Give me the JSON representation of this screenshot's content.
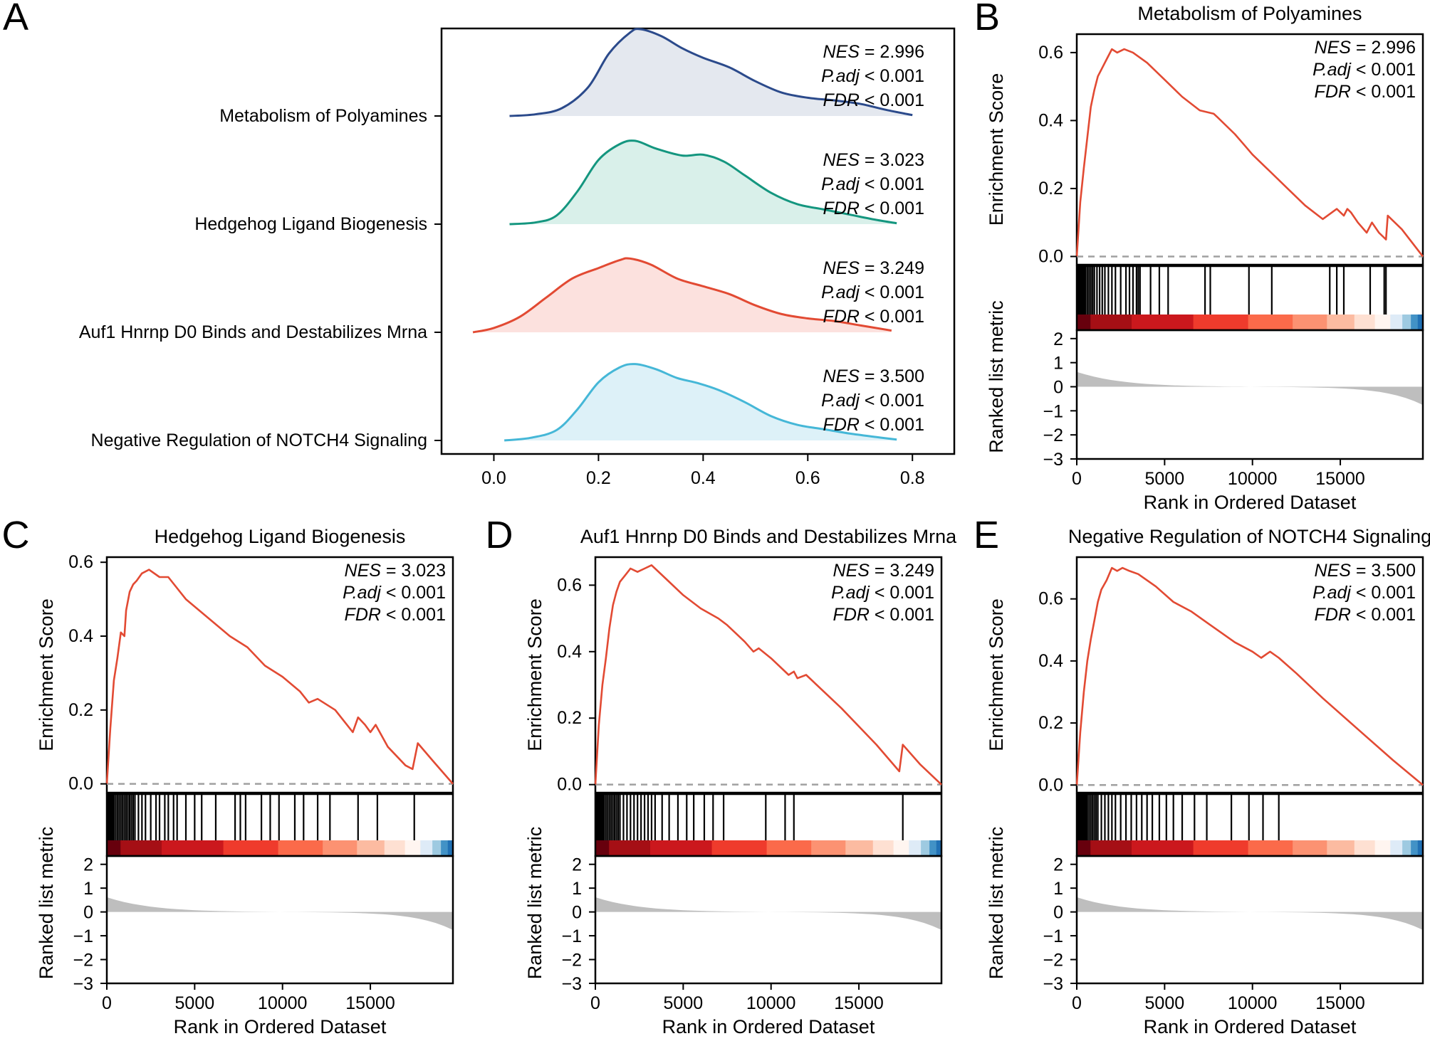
{
  "figure": {
    "panel_letters": [
      "A",
      "B",
      "C",
      "D",
      "E"
    ],
    "colors": {
      "curve": "#E24A33",
      "dash": "#A0A0A0",
      "hit": "#000000",
      "metric_fill": "#BEBEBE",
      "ridge_lines": [
        "#2B4A8B",
        "#14967F",
        "#E24A33",
        "#45B7D7"
      ],
      "ridge_fills": [
        "#E4E8EF",
        "#D9F0EA",
        "#FCE1DE",
        "#DDF1F8"
      ],
      "heat_scale": [
        "#67000D",
        "#A50F15",
        "#CB181D",
        "#EF3B2C",
        "#FB6A4A",
        "#FC9272",
        "#FCBBA1",
        "#FEE0D2",
        "#FFF5F0",
        "#DEEBF7",
        "#9ECAE1",
        "#4292C6",
        "#2171B5"
      ]
    }
  },
  "chart_data": [
    {
      "panel": "A",
      "type": "ridgeline",
      "x_ticks": [
        "0.0",
        "0.2",
        "0.4",
        "0.6",
        "0.8"
      ],
      "xlim": [
        -0.1,
        0.88
      ],
      "rows": [
        {
          "label": "Metabolism of Polyamines",
          "nes_label": "NES",
          "nes_value": "= 2.996",
          "padj_label": "P.adj",
          "padj_value": "< 0.001",
          "fdr_label": "FDR",
          "fdr_value": "< 0.001",
          "density": [
            [
              0.03,
              0.0
            ],
            [
              0.08,
              0.02
            ],
            [
              0.13,
              0.09
            ],
            [
              0.18,
              0.33
            ],
            [
              0.22,
              0.72
            ],
            [
              0.26,
              0.96
            ],
            [
              0.28,
              1.0
            ],
            [
              0.32,
              0.92
            ],
            [
              0.36,
              0.78
            ],
            [
              0.4,
              0.67
            ],
            [
              0.45,
              0.56
            ],
            [
              0.5,
              0.4
            ],
            [
              0.55,
              0.27
            ],
            [
              0.6,
              0.21
            ],
            [
              0.65,
              0.18
            ],
            [
              0.7,
              0.14
            ],
            [
              0.75,
              0.07
            ],
            [
              0.8,
              0.01
            ]
          ]
        },
        {
          "label": "Hedgehog Ligand Biogenesis",
          "nes_label": "NES",
          "nes_value": "= 3.023",
          "padj_label": "P.adj",
          "padj_value": "< 0.001",
          "fdr_label": "FDR",
          "fdr_value": "< 0.001",
          "density": [
            [
              0.03,
              0.0
            ],
            [
              0.08,
              0.02
            ],
            [
              0.12,
              0.1
            ],
            [
              0.16,
              0.38
            ],
            [
              0.2,
              0.74
            ],
            [
              0.24,
              0.92
            ],
            [
              0.27,
              0.96
            ],
            [
              0.31,
              0.87
            ],
            [
              0.36,
              0.79
            ],
            [
              0.4,
              0.8
            ],
            [
              0.44,
              0.72
            ],
            [
              0.48,
              0.56
            ],
            [
              0.53,
              0.36
            ],
            [
              0.58,
              0.23
            ],
            [
              0.63,
              0.17
            ],
            [
              0.68,
              0.11
            ],
            [
              0.73,
              0.05
            ],
            [
              0.77,
              0.01
            ]
          ]
        },
        {
          "label": "Auf1 Hnrnp D0 Binds and Destabilizes Mrna",
          "nes_label": "NES",
          "nes_value": "= 3.249",
          "padj_label": "P.adj",
          "padj_value": "< 0.001",
          "fdr_label": "FDR",
          "fdr_value": "< 0.001",
          "density": [
            [
              -0.04,
              0.0
            ],
            [
              0.0,
              0.05
            ],
            [
              0.05,
              0.18
            ],
            [
              0.1,
              0.4
            ],
            [
              0.15,
              0.62
            ],
            [
              0.2,
              0.74
            ],
            [
              0.24,
              0.83
            ],
            [
              0.26,
              0.85
            ],
            [
              0.3,
              0.78
            ],
            [
              0.35,
              0.62
            ],
            [
              0.4,
              0.53
            ],
            [
              0.45,
              0.44
            ],
            [
              0.5,
              0.31
            ],
            [
              0.55,
              0.21
            ],
            [
              0.6,
              0.16
            ],
            [
              0.65,
              0.13
            ],
            [
              0.7,
              0.08
            ],
            [
              0.76,
              0.02
            ]
          ]
        },
        {
          "label": "Negative Regulation of NOTCH4 Signaling",
          "nes_label": "NES",
          "nes_value": "= 3.500",
          "padj_label": "P.adj",
          "padj_value": "< 0.001",
          "fdr_label": "FDR",
          "fdr_value": "< 0.001",
          "density": [
            [
              0.02,
              0.0
            ],
            [
              0.07,
              0.03
            ],
            [
              0.12,
              0.12
            ],
            [
              0.16,
              0.36
            ],
            [
              0.2,
              0.67
            ],
            [
              0.24,
              0.84
            ],
            [
              0.27,
              0.88
            ],
            [
              0.31,
              0.82
            ],
            [
              0.35,
              0.72
            ],
            [
              0.39,
              0.66
            ],
            [
              0.43,
              0.58
            ],
            [
              0.48,
              0.44
            ],
            [
              0.53,
              0.28
            ],
            [
              0.58,
              0.18
            ],
            [
              0.63,
              0.13
            ],
            [
              0.68,
              0.08
            ],
            [
              0.73,
              0.04
            ],
            [
              0.77,
              0.01
            ]
          ]
        }
      ]
    },
    {
      "panel": "B",
      "type": "line",
      "title": "Metabolism of Polyamines",
      "ylabel_top": "Enrichment Score",
      "ylabel_bottom": "Ranked list metric",
      "xlabel": "Rank in Ordered Dataset",
      "ylim": [
        -0.02,
        0.65
      ],
      "y_ticks": [
        0.0,
        0.2,
        0.4,
        0.6
      ],
      "y_tick_labels": [
        "0.0",
        "0.2",
        "0.4",
        "0.6"
      ],
      "metric_ticks": [
        "2",
        "1",
        "0",
        "−1",
        "−2",
        "−3"
      ],
      "x_ticks": [
        "0",
        "5000",
        "10000",
        "15000"
      ],
      "nes_label": "NES",
      "nes_value": "= 2.996",
      "padj_label": "P.adj",
      "padj_value": "< 0.001",
      "fdr_label": "FDR",
      "fdr_value": "< 0.001",
      "x": [
        0,
        200,
        400,
        600,
        800,
        1000,
        1200,
        1400,
        1700,
        2000,
        2300,
        2700,
        3200,
        4000,
        5000,
        6000,
        7000,
        7800,
        8000,
        9000,
        9500,
        10000,
        11000,
        12000,
        13000,
        14000,
        14800,
        15200,
        15400,
        15600,
        16000,
        16500,
        16800,
        17200,
        17600,
        17700,
        18500,
        19700
      ],
      "es": [
        0,
        0.16,
        0.26,
        0.35,
        0.44,
        0.49,
        0.53,
        0.55,
        0.58,
        0.61,
        0.6,
        0.61,
        0.6,
        0.57,
        0.52,
        0.47,
        0.43,
        0.42,
        0.41,
        0.36,
        0.33,
        0.3,
        0.25,
        0.2,
        0.15,
        0.11,
        0.14,
        0.12,
        0.14,
        0.13,
        0.1,
        0.07,
        0.1,
        0.07,
        0.05,
        0.12,
        0.08,
        0.0
      ],
      "hits": [
        50,
        100,
        150,
        200,
        250,
        300,
        350,
        400,
        450,
        500,
        600,
        700,
        800,
        900,
        1000,
        1150,
        1300,
        1450,
        1600,
        1800,
        2000,
        2200,
        2500,
        2800,
        3000,
        3200,
        3400,
        3500,
        3600,
        4200,
        4700,
        5200,
        7300,
        7600,
        9800,
        11100,
        14400,
        14800,
        15200,
        16700,
        17500,
        17600
      ]
    },
    {
      "panel": "C",
      "type": "line",
      "title": "Hedgehog Ligand Biogenesis",
      "ylabel_top": "Enrichment Score",
      "ylabel_bottom": "Ranked list metric",
      "xlabel": "Rank in Ordered Dataset",
      "ylim": [
        -0.02,
        0.61
      ],
      "y_ticks": [
        0.0,
        0.2,
        0.4,
        0.6
      ],
      "y_tick_labels": [
        "0.0",
        "0.2",
        "0.4",
        "0.6"
      ],
      "metric_ticks": [
        "2",
        "1",
        "0",
        "−1",
        "−2",
        "−3"
      ],
      "x_ticks": [
        "0",
        "5000",
        "10000",
        "15000"
      ],
      "nes_label": "NES",
      "nes_value": "= 3.023",
      "padj_label": "P.adj",
      "padj_value": "< 0.001",
      "fdr_label": "FDR",
      "fdr_value": "< 0.001",
      "x": [
        0,
        200,
        400,
        600,
        800,
        1000,
        1100,
        1300,
        1500,
        1700,
        2000,
        2400,
        3000,
        3500,
        4500,
        5500,
        6500,
        7000,
        8000,
        9000,
        10000,
        11000,
        11500,
        12000,
        13000,
        14000,
        14300,
        14700,
        15000,
        15300,
        16000,
        17000,
        17400,
        17700,
        18600,
        19700
      ],
      "es": [
        0,
        0.15,
        0.28,
        0.34,
        0.41,
        0.4,
        0.47,
        0.52,
        0.54,
        0.55,
        0.57,
        0.58,
        0.56,
        0.56,
        0.5,
        0.46,
        0.42,
        0.4,
        0.37,
        0.32,
        0.29,
        0.25,
        0.22,
        0.23,
        0.2,
        0.14,
        0.18,
        0.16,
        0.14,
        0.16,
        0.1,
        0.05,
        0.04,
        0.11,
        0.06,
        0.0
      ],
      "hits": [
        50,
        100,
        150,
        200,
        250,
        300,
        350,
        400,
        500,
        600,
        700,
        800,
        900,
        1000,
        1100,
        1200,
        1300,
        1400,
        1500,
        1600,
        1800,
        2000,
        2200,
        2500,
        2800,
        3000,
        3300,
        3500,
        3800,
        4000,
        4500,
        5000,
        5400,
        6200,
        7300,
        7600,
        7900,
        8800,
        9300,
        9800,
        10700,
        11200,
        12000,
        12700,
        14300,
        15400,
        17500
      ]
    },
    {
      "panel": "D",
      "type": "line",
      "title": "Auf1 Hnrnp D0 Binds and Destabilizes Mrna",
      "ylabel_top": "Enrichment Score",
      "ylabel_bottom": "Ranked list metric",
      "xlabel": "Rank in Ordered Dataset",
      "ylim": [
        -0.02,
        0.68
      ],
      "y_ticks": [
        0.0,
        0.2,
        0.4,
        0.6
      ],
      "y_tick_labels": [
        "0.0",
        "0.2",
        "0.4",
        "0.6"
      ],
      "metric_ticks": [
        "2",
        "1",
        "0",
        "−1",
        "−2",
        "−3"
      ],
      "x_ticks": [
        "0",
        "5000",
        "10000",
        "15000"
      ],
      "nes_label": "NES",
      "nes_value": "= 3.249",
      "padj_label": "P.adj",
      "padj_value": "< 0.001",
      "fdr_label": "FDR",
      "fdr_value": "< 0.001",
      "x": [
        0,
        200,
        400,
        600,
        800,
        1000,
        1200,
        1400,
        1700,
        2000,
        2400,
        2800,
        3200,
        4000,
        5000,
        6000,
        7000,
        7500,
        8500,
        9000,
        9300,
        10000,
        11000,
        11300,
        11500,
        12000,
        14000,
        16000,
        17300,
        17500,
        18500,
        19700
      ],
      "es": [
        0,
        0.18,
        0.3,
        0.38,
        0.47,
        0.54,
        0.58,
        0.61,
        0.63,
        0.65,
        0.64,
        0.65,
        0.66,
        0.62,
        0.57,
        0.53,
        0.5,
        0.48,
        0.43,
        0.4,
        0.41,
        0.38,
        0.33,
        0.34,
        0.32,
        0.33,
        0.23,
        0.12,
        0.04,
        0.12,
        0.06,
        0.0
      ],
      "hits": [
        50,
        100,
        150,
        200,
        250,
        300,
        350,
        400,
        450,
        500,
        600,
        700,
        800,
        900,
        1000,
        1100,
        1200,
        1300,
        1400,
        1600,
        1800,
        2000,
        2200,
        2400,
        2600,
        2800,
        3000,
        3200,
        3400,
        3800,
        4200,
        4700,
        5200,
        5600,
        6200,
        6700,
        7300,
        9700,
        10800,
        11300,
        17500
      ]
    },
    {
      "panel": "E",
      "type": "line",
      "title": "Negative Regulation of NOTCH4 Signaling",
      "ylabel_top": "Enrichment Score",
      "ylabel_bottom": "Ranked list metric",
      "xlabel": "Rank in Ordered Dataset",
      "ylim": [
        -0.02,
        0.73
      ],
      "y_ticks": [
        0.0,
        0.2,
        0.4,
        0.6
      ],
      "y_tick_labels": [
        "0.0",
        "0.2",
        "0.4",
        "0.6"
      ],
      "metric_ticks": [
        "2",
        "1",
        "0",
        "−1",
        "−2",
        "−3"
      ],
      "x_ticks": [
        "0",
        "5000",
        "10000",
        "15000"
      ],
      "nes_label": "NES",
      "nes_value": "= 3.500",
      "padj_label": "P.adj",
      "padj_value": "< 0.001",
      "fdr_label": "FDR",
      "fdr_value": "< 0.001",
      "x": [
        0,
        200,
        400,
        600,
        800,
        1000,
        1200,
        1400,
        1700,
        2000,
        2300,
        2600,
        3000,
        3500,
        4500,
        5500,
        6500,
        7500,
        8000,
        9000,
        10000,
        10500,
        11000,
        11500,
        12500,
        14000,
        16000,
        18000,
        19700
      ],
      "es": [
        0,
        0.17,
        0.3,
        0.4,
        0.47,
        0.53,
        0.59,
        0.63,
        0.66,
        0.7,
        0.69,
        0.7,
        0.69,
        0.68,
        0.64,
        0.59,
        0.56,
        0.52,
        0.5,
        0.46,
        0.43,
        0.41,
        0.43,
        0.41,
        0.36,
        0.28,
        0.18,
        0.08,
        0.0
      ],
      "hits": [
        50,
        100,
        150,
        200,
        250,
        300,
        350,
        400,
        450,
        500,
        550,
        600,
        700,
        800,
        900,
        1000,
        1100,
        1200,
        1400,
        1600,
        1800,
        2000,
        2200,
        2500,
        2800,
        3100,
        3400,
        3700,
        4000,
        4300,
        4700,
        5100,
        5500,
        6000,
        6700,
        7400,
        8800,
        9800,
        10600,
        11500
      ]
    }
  ]
}
